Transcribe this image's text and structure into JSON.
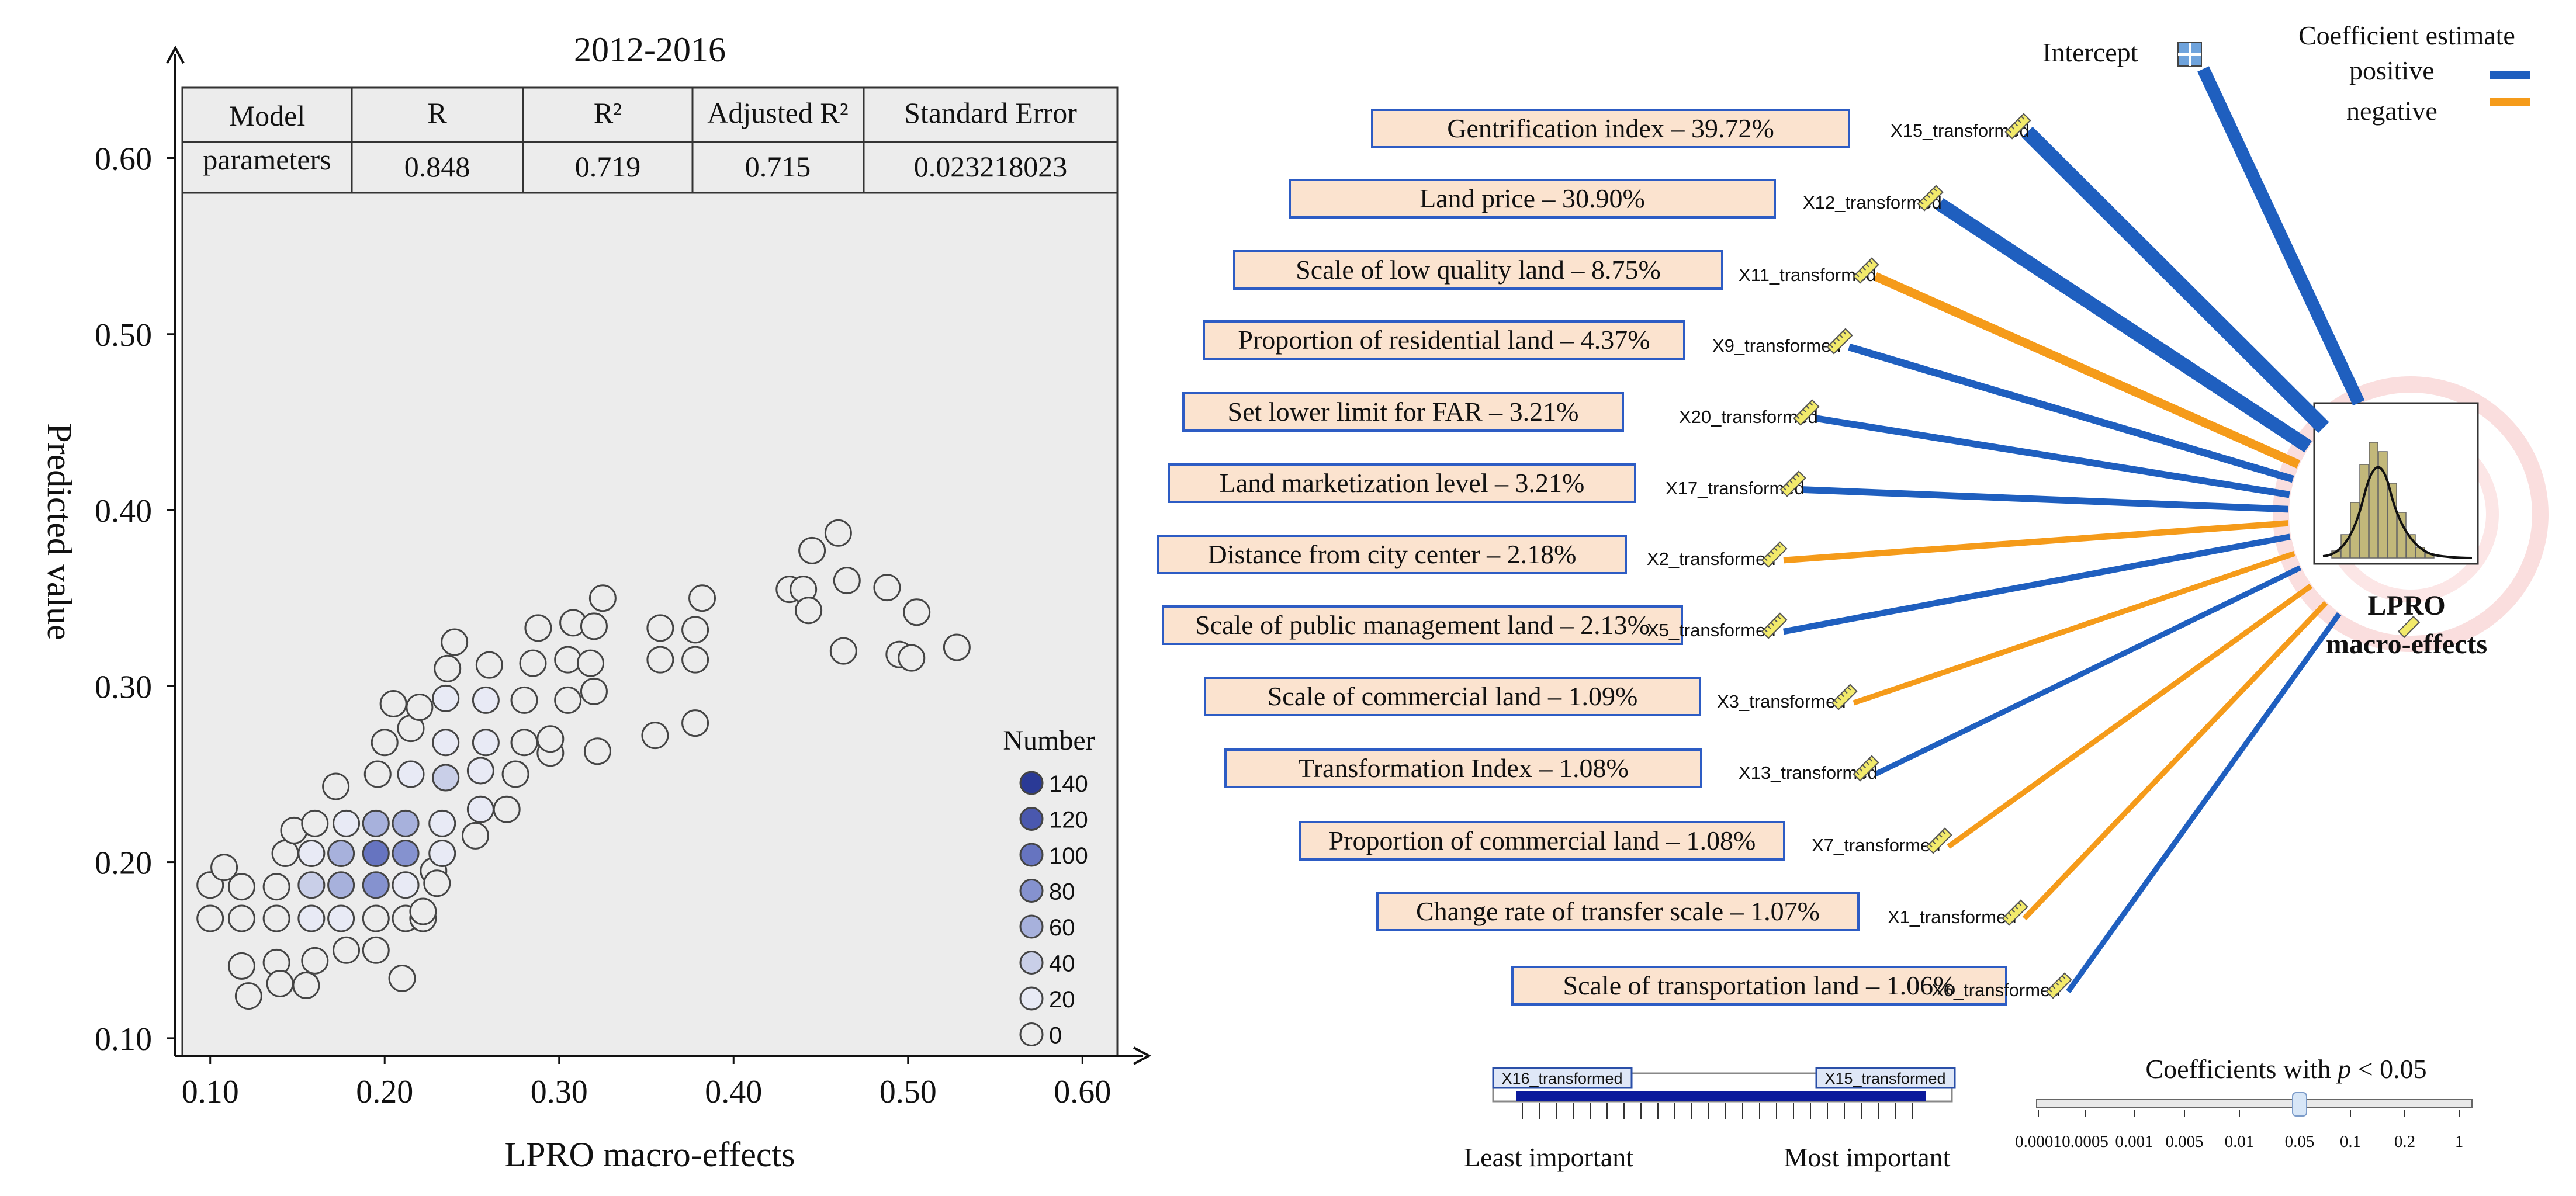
{
  "chart_data": [
    {
      "type": "scatter",
      "title": "2012-2016",
      "xlabel": "LPRO macro-effects",
      "ylabel": "Predicted value",
      "xlim": [
        0.08,
        0.62
      ],
      "ylim": [
        0.09,
        0.64
      ],
      "x_ticks": [
        0.1,
        0.2,
        0.3,
        0.4,
        0.5,
        0.6
      ],
      "x_tick_labels": [
        "0.10",
        "0.20",
        "0.30",
        "0.40",
        "0.50",
        "0.60"
      ],
      "y_ticks": [
        0.1,
        0.2,
        0.3,
        0.4,
        0.5,
        0.6
      ],
      "y_tick_labels": [
        "0.10",
        "0.20",
        "0.30",
        "0.40",
        "0.50",
        "0.60"
      ],
      "grid": false,
      "table": {
        "headers": [
          "Model parameters",
          "R",
          "R²",
          "Adjusted R²",
          "Standard Error"
        ],
        "row_label_lines": [
          "Model",
          "parameters"
        ],
        "values": [
          "0.848",
          "0.719",
          "0.715",
          "0.023218023"
        ]
      },
      "legend": {
        "title": "Number",
        "position": "bottom-right",
        "labels": [
          "140",
          "120",
          "100",
          "80",
          "60",
          "40",
          "20",
          "0"
        ],
        "levels": [
          140,
          120,
          100,
          80,
          60,
          40,
          20,
          0
        ]
      },
      "points": [
        [
          0.1,
          0.168,
          0
        ],
        [
          0.1,
          0.187,
          0
        ],
        [
          0.108,
          0.197,
          0
        ],
        [
          0.118,
          0.186,
          0
        ],
        [
          0.118,
          0.168,
          0
        ],
        [
          0.118,
          0.141,
          0
        ],
        [
          0.122,
          0.124,
          0
        ],
        [
          0.138,
          0.168,
          0
        ],
        [
          0.138,
          0.186,
          0
        ],
        [
          0.138,
          0.143,
          0
        ],
        [
          0.14,
          0.131,
          0
        ],
        [
          0.143,
          0.205,
          0
        ],
        [
          0.148,
          0.218,
          0
        ],
        [
          0.155,
          0.13,
          0
        ],
        [
          0.158,
          0.168,
          20
        ],
        [
          0.158,
          0.187,
          40
        ],
        [
          0.158,
          0.205,
          20
        ],
        [
          0.16,
          0.222,
          0
        ],
        [
          0.16,
          0.144,
          0
        ],
        [
          0.172,
          0.243,
          0
        ],
        [
          0.175,
          0.168,
          20
        ],
        [
          0.175,
          0.187,
          60
        ],
        [
          0.175,
          0.205,
          60
        ],
        [
          0.178,
          0.222,
          20
        ],
        [
          0.178,
          0.15,
          0
        ],
        [
          0.195,
          0.168,
          0
        ],
        [
          0.195,
          0.187,
          80
        ],
        [
          0.195,
          0.205,
          100
        ],
        [
          0.195,
          0.222,
          60
        ],
        [
          0.195,
          0.15,
          0
        ],
        [
          0.196,
          0.25,
          0
        ],
        [
          0.2,
          0.268,
          0
        ],
        [
          0.205,
          0.29,
          0
        ],
        [
          0.21,
          0.134,
          0
        ],
        [
          0.212,
          0.168,
          0
        ],
        [
          0.212,
          0.187,
          20
        ],
        [
          0.212,
          0.205,
          80
        ],
        [
          0.212,
          0.222,
          60
        ],
        [
          0.215,
          0.25,
          20
        ],
        [
          0.215,
          0.276,
          0
        ],
        [
          0.22,
          0.288,
          0
        ],
        [
          0.222,
          0.168,
          0
        ],
        [
          0.222,
          0.172,
          0
        ],
        [
          0.228,
          0.195,
          0
        ],
        [
          0.23,
          0.188,
          0
        ],
        [
          0.233,
          0.205,
          20
        ],
        [
          0.233,
          0.222,
          20
        ],
        [
          0.235,
          0.248,
          40
        ],
        [
          0.235,
          0.268,
          20
        ],
        [
          0.235,
          0.293,
          20
        ],
        [
          0.236,
          0.31,
          0
        ],
        [
          0.24,
          0.325,
          0
        ],
        [
          0.252,
          0.215,
          0
        ],
        [
          0.255,
          0.23,
          20
        ],
        [
          0.255,
          0.252,
          20
        ],
        [
          0.258,
          0.268,
          20
        ],
        [
          0.258,
          0.292,
          20
        ],
        [
          0.26,
          0.312,
          0
        ],
        [
          0.27,
          0.23,
          0
        ],
        [
          0.275,
          0.25,
          0
        ],
        [
          0.28,
          0.268,
          0
        ],
        [
          0.28,
          0.292,
          0
        ],
        [
          0.285,
          0.313,
          0
        ],
        [
          0.288,
          0.333,
          0
        ],
        [
          0.295,
          0.262,
          0
        ],
        [
          0.295,
          0.27,
          0
        ],
        [
          0.305,
          0.292,
          0
        ],
        [
          0.305,
          0.315,
          0
        ],
        [
          0.308,
          0.336,
          0
        ],
        [
          0.318,
          0.313,
          0
        ],
        [
          0.32,
          0.297,
          0
        ],
        [
          0.32,
          0.334,
          0
        ],
        [
          0.322,
          0.263,
          0
        ],
        [
          0.325,
          0.35,
          0
        ],
        [
          0.355,
          0.272,
          0
        ],
        [
          0.358,
          0.315,
          0
        ],
        [
          0.358,
          0.333,
          0
        ],
        [
          0.378,
          0.279,
          0
        ],
        [
          0.378,
          0.315,
          0
        ],
        [
          0.378,
          0.332,
          0
        ],
        [
          0.382,
          0.35,
          0
        ],
        [
          0.432,
          0.355,
          0
        ],
        [
          0.44,
          0.355,
          0
        ],
        [
          0.443,
          0.343,
          0
        ],
        [
          0.445,
          0.377,
          0
        ],
        [
          0.46,
          0.387,
          0
        ],
        [
          0.463,
          0.32,
          0
        ],
        [
          0.465,
          0.36,
          0
        ],
        [
          0.488,
          0.356,
          0
        ],
        [
          0.495,
          0.318,
          0
        ],
        [
          0.502,
          0.316,
          0
        ],
        [
          0.505,
          0.342,
          0
        ],
        [
          0.528,
          0.322,
          0
        ]
      ]
    },
    {
      "type": "diagram",
      "legend": {
        "title": "Coefficient estimate",
        "entries": [
          {
            "label": "positive",
            "color": "#1f5fbf"
          },
          {
            "label": "negative",
            "color": "#f59b1a"
          }
        ]
      },
      "target_label_lines": [
        "LPRO",
        "macro-effects"
      ],
      "intercept_label": "Intercept",
      "intercept_sign": "positive",
      "predictors": [
        {
          "label": "Gentrification index – 39.72%",
          "variable": "X15_transformed",
          "importance": 39.72,
          "sign": "positive"
        },
        {
          "label": "Land price – 30.90%",
          "variable": "X12_transformed",
          "importance": 30.9,
          "sign": "positive"
        },
        {
          "label": "Scale of low quality land – 8.75%",
          "variable": "X11_transformed",
          "importance": 8.75,
          "sign": "negative"
        },
        {
          "label": "Proportion of residential land – 4.37%",
          "variable": "X9_transformed",
          "importance": 4.37,
          "sign": "positive"
        },
        {
          "label": "Set lower limit for FAR – 3.21%",
          "variable": "X20_transformed",
          "importance": 3.21,
          "sign": "positive"
        },
        {
          "label": "Land marketization level – 3.21%",
          "variable": "X17_transformed",
          "importance": 3.21,
          "sign": "positive"
        },
        {
          "label": "Distance from city center – 2.18%",
          "variable": "X2_transformed",
          "importance": 2.18,
          "sign": "negative"
        },
        {
          "label": "Scale of public management land – 2.13%",
          "variable": "X5_transformed",
          "importance": 2.13,
          "sign": "positive"
        },
        {
          "label": "Scale of commercial land – 1.09%",
          "variable": "X3_transformed",
          "importance": 1.09,
          "sign": "negative"
        },
        {
          "label": "Transformation Index – 1.08%",
          "variable": "X13_transformed",
          "importance": 1.08,
          "sign": "positive"
        },
        {
          "label": "Proportion of commercial land – 1.08%",
          "variable": "X7_transformed",
          "importance": 1.08,
          "sign": "negative"
        },
        {
          "label": "Change rate of transfer scale – 1.07%",
          "variable": "X1_transformed",
          "importance": 1.07,
          "sign": "negative"
        },
        {
          "label": "Scale of transportation land – 1.06%",
          "variable": "X6_transformed",
          "importance": 1.06,
          "sign": "positive"
        }
      ],
      "importance_slider": {
        "left_tag": "X16_transformed",
        "right_tag": "X15_transformed",
        "left_label": "Least important",
        "right_label": "Most important"
      },
      "p_slider": {
        "title": "Coefficients with p < 0.05",
        "title_prefix": "Coefficients with ",
        "title_italic": "p",
        "title_suffix": " < 0.05",
        "ticks": [
          "0.0001",
          "0.0005",
          "0.001",
          "0.005",
          "0.01",
          "0.05",
          "0.1",
          "0.2",
          "1"
        ],
        "value": 0.05
      }
    }
  ]
}
